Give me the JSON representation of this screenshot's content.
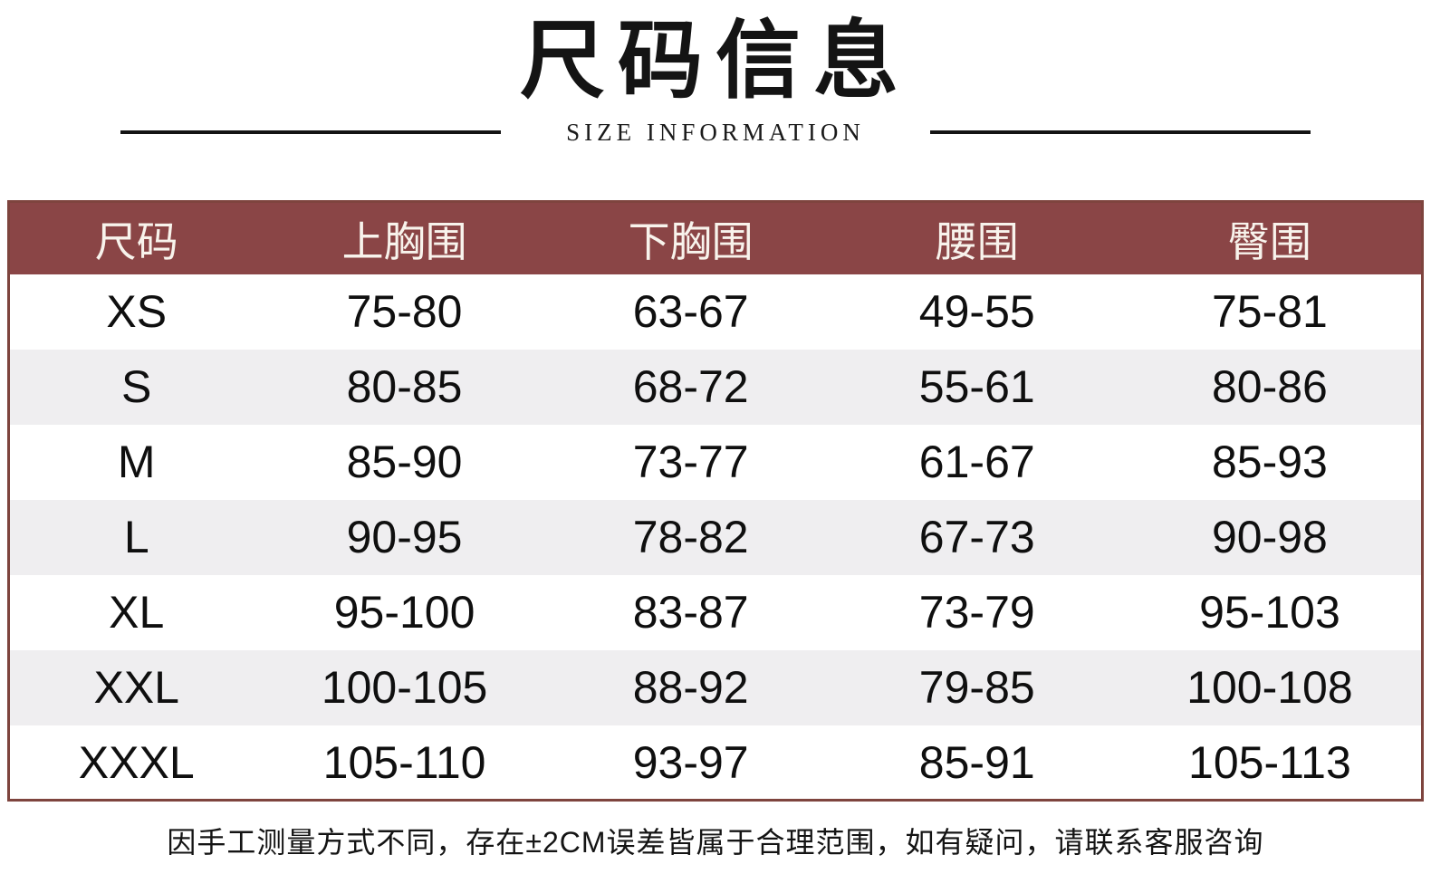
{
  "header": {
    "title": "尺码信息",
    "subtitle": "SIZE INFORMATION"
  },
  "table": {
    "colors": {
      "header_bg": "#8a4546",
      "header_text": "#f8f3ec",
      "border": "#7e443e",
      "row_bg": "#ffffff",
      "row_alt_bg": "#efeef0",
      "cell_text": "#0f0f0f"
    },
    "columns": [
      "尺码",
      "上胸围",
      "下胸围",
      "腰围",
      "臀围"
    ],
    "rows": [
      [
        "XS",
        "75-80",
        "63-67",
        "49-55",
        "75-81"
      ],
      [
        "S",
        "80-85",
        "68-72",
        "55-61",
        "80-86"
      ],
      [
        "M",
        "85-90",
        "73-77",
        "61-67",
        "85-93"
      ],
      [
        "L",
        "90-95",
        "78-82",
        "67-73",
        "90-98"
      ],
      [
        "XL",
        "95-100",
        "83-87",
        "73-79",
        "95-103"
      ],
      [
        "XXL",
        "100-105",
        "88-92",
        "79-85",
        "100-108"
      ],
      [
        "XXXL",
        "105-110",
        "93-97",
        "85-91",
        "105-113"
      ]
    ]
  },
  "footer": {
    "note": "因手工测量方式不同，存在±2CM误差皆属于合理范围，如有疑问，请联系客服咨询"
  }
}
